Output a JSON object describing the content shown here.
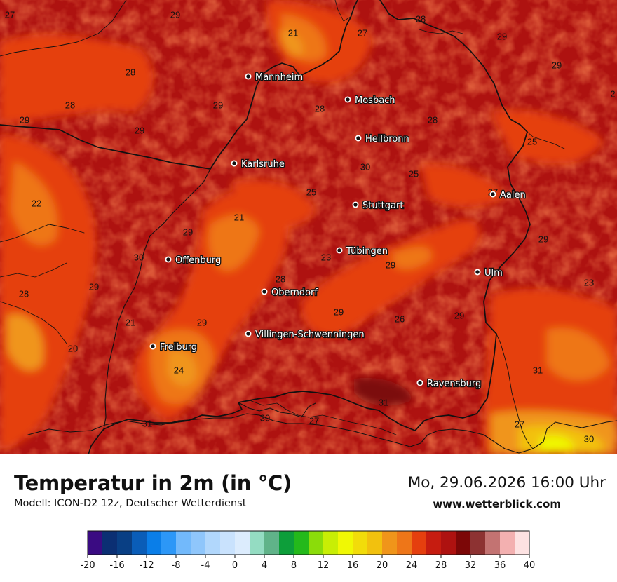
{
  "title": "Temperatur in 2m (in °C)",
  "subtitle": "Modell: ICON-D2 12z, Deutscher Wetterdienst",
  "datetime": "Mo, 29.06.2026 16:00 Uhr",
  "website": "www.wetterblick.com",
  "cities": [
    {
      "name": "Mannheim",
      "dot": "city-dot",
      "label": "city-label"
    },
    {
      "name": "Mosbach"
    },
    {
      "name": "Heilbronn"
    },
    {
      "name": "Karlsruhe"
    },
    {
      "name": "Aalen"
    },
    {
      "name": "Stuttgart"
    },
    {
      "name": "Tübingen"
    },
    {
      "name": "Offenburg"
    },
    {
      "name": "Ulm"
    },
    {
      "name": "Oberndorf"
    },
    {
      "name": "Villingen-Schwenningen"
    },
    {
      "name": "Freiburg"
    },
    {
      "name": "Ravensburg"
    }
  ],
  "temperature_labels": [
    "27",
    "29",
    "21",
    "27",
    "28",
    "29",
    "28",
    "28",
    "29",
    "28",
    "29",
    "29",
    "28",
    "29",
    "25",
    "30",
    "25",
    "22",
    "25",
    "27",
    "21",
    "29",
    "29",
    "30",
    "23",
    "29",
    "28",
    "29",
    "28",
    "23",
    "29",
    "26",
    "21",
    "29",
    "29",
    "20",
    "24",
    "31",
    "31",
    "31",
    "30",
    "27",
    "27",
    "30",
    "2"
  ],
  "color_scale": {
    "colors": [
      "#3a0b82",
      "#0b2f73",
      "#093f84",
      "#0a5db8",
      "#0a7ee8",
      "#2c97f7",
      "#72b9fb",
      "#8fc6fb",
      "#b1d7fc",
      "#c9e2fd",
      "#dcecfd",
      "#94dcc2",
      "#60b389",
      "#0d9e3a",
      "#24b91b",
      "#8bdc0a",
      "#c8ee05",
      "#f0f804",
      "#f2dc0a",
      "#f2c10e",
      "#f0951a",
      "#ee7618",
      "#e53f0e",
      "#c61c10",
      "#ae1210",
      "#7c0707",
      "#8d3232",
      "#c37372",
      "#f3b0b0",
      "#fde2e2"
    ],
    "tick_labels": [
      "-20",
      "-16",
      "-12",
      "-8",
      "-4",
      "0",
      "4",
      "8",
      "12",
      "16",
      "20",
      "24",
      "28",
      "32",
      "36",
      "40"
    ]
  }
}
